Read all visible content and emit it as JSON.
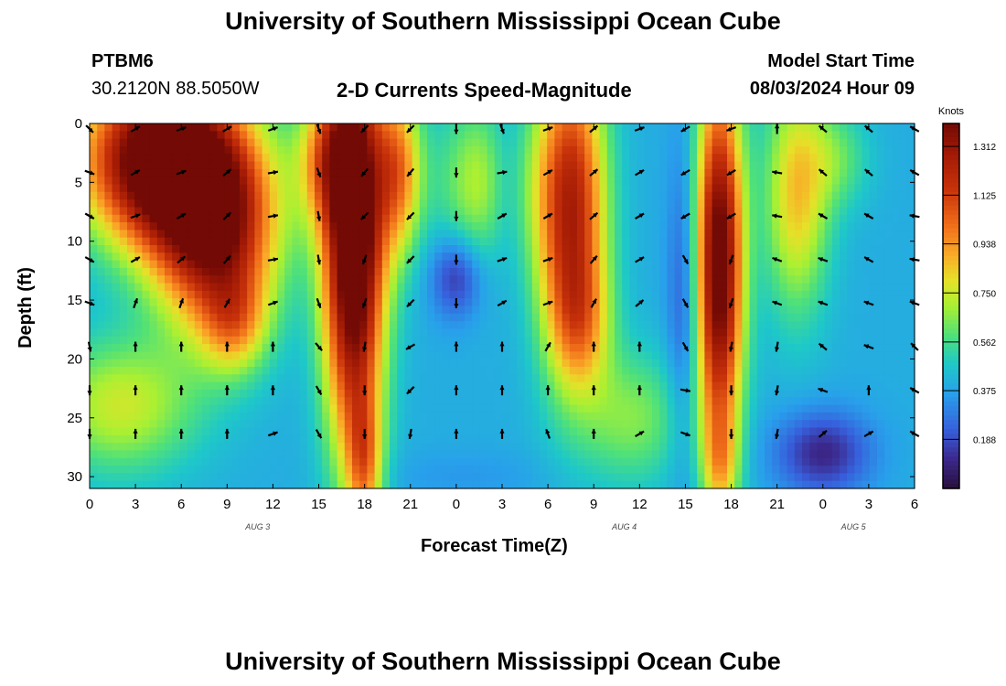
{
  "header": {
    "title_top": "University of Southern Mississippi Ocean Cube",
    "title_bottom": "University of Southern Mississippi Ocean Cube",
    "station_id": "PTBM6",
    "station_coords": "30.2120N  88.5050W",
    "plot_title": "2-D Currents Speed-Magnitude",
    "model_label": "Model Start Time",
    "model_time": "08/03/2024 Hour 09"
  },
  "chart_data": {
    "type": "heatmap",
    "title": "2-D Currents Speed-Magnitude",
    "xlabel": "Forecast Time(Z)",
    "ylabel": "Depth (ft)",
    "x_tick_labels": [
      "0",
      "3",
      "6",
      "9",
      "12",
      "15",
      "18",
      "21",
      "0",
      "3",
      "6",
      "9",
      "12",
      "15",
      "18",
      "21",
      "0",
      "3",
      "6"
    ],
    "x_range_hours": [
      0,
      54
    ],
    "y_range_ft": [
      0,
      31
    ],
    "y_ticks": [
      0,
      5,
      10,
      15,
      20,
      25,
      30
    ],
    "day_labels": [
      {
        "hour": 11,
        "label": "AUG 3"
      },
      {
        "hour": 35,
        "label": "AUG 4"
      },
      {
        "hour": 50,
        "label": "AUG 5"
      }
    ],
    "colorbar": {
      "unit": "Knots",
      "min": 0.0,
      "max": 1.4,
      "ticks": [
        "1.312",
        "1.125",
        "0.938",
        "0.750",
        "0.562",
        "0.375",
        "0.188"
      ],
      "tick_values": [
        1.312,
        1.125,
        0.938,
        0.75,
        0.562,
        0.375,
        0.188
      ]
    },
    "speed_blobs": [
      {
        "t": 4.5,
        "d": 3,
        "st": 3.5,
        "sd": 5,
        "a": 1.15
      },
      {
        "t": 8.2,
        "d": 9,
        "st": 2.8,
        "sd": 6,
        "a": 0.95
      },
      {
        "t": 9.5,
        "d": 17,
        "st": 1.5,
        "sd": 3,
        "a": 0.35
      },
      {
        "t": 2.0,
        "d": 24,
        "st": 3.5,
        "sd": 4,
        "a": 0.35
      },
      {
        "t": 15.5,
        "d": 3,
        "st": 1.4,
        "sd": 4,
        "a": 0.45
      },
      {
        "t": 17.3,
        "d": 10,
        "st": 1.4,
        "sd": 12,
        "a": 1.25
      },
      {
        "t": 18.0,
        "d": 29,
        "st": 0.8,
        "sd": 4,
        "a": 0.4
      },
      {
        "t": 20.2,
        "d": 4,
        "st": 1.1,
        "sd": 5,
        "a": 0.55
      },
      {
        "t": 26.0,
        "d": 5,
        "st": 2.2,
        "sd": 5,
        "a": 0.35
      },
      {
        "t": 31.5,
        "d": 7,
        "st": 1.6,
        "sd": 9,
        "a": 0.85
      },
      {
        "t": 32.2,
        "d": 17,
        "st": 1.4,
        "sd": 4,
        "a": 0.3
      },
      {
        "t": 35.5,
        "d": 25,
        "st": 2.5,
        "sd": 4,
        "a": 0.25
      },
      {
        "t": 41.2,
        "d": 12,
        "st": 1.1,
        "sd": 11,
        "a": 1.1
      },
      {
        "t": 41.3,
        "d": 29,
        "st": 0.8,
        "sd": 3,
        "a": 0.25
      },
      {
        "t": 46.3,
        "d": 6,
        "st": 1.5,
        "sd": 7,
        "a": 0.45
      },
      {
        "t": 49.0,
        "d": 3,
        "st": 1.5,
        "sd": 3,
        "a": 0.18
      }
    ],
    "slow_blobs": [
      {
        "t": 24.0,
        "d": 13,
        "st": 1.2,
        "sd": 2.5,
        "a": 0.28
      },
      {
        "t": 27.3,
        "d": 5,
        "st": 1.0,
        "sd": 5,
        "a": 0.2
      },
      {
        "t": 39.0,
        "d": 15,
        "st": 0.8,
        "sd": 10,
        "a": 0.22
      },
      {
        "t": 48.0,
        "d": 28,
        "st": 2.2,
        "sd": 2.5,
        "a": 0.3
      },
      {
        "t": 24.5,
        "d": 30,
        "st": 4.0,
        "sd": 1.5,
        "a": 0.05
      }
    ],
    "base_speed": 0.4,
    "vector_hours": [
      0,
      3,
      6,
      9,
      12,
      15,
      18,
      21,
      24,
      27,
      30,
      33,
      36,
      39,
      42,
      45,
      48,
      51,
      54
    ],
    "vector_depths_ft": [
      0,
      3.7,
      7.4,
      11.1,
      14.8,
      18.5,
      22.2,
      25.9
    ],
    "vector_directions_deg": [
      [
        135,
        110,
        120,
        120,
        110,
        170,
        180,
        180
      ],
      [
        60,
        60,
        70,
        60,
        20,
        0,
        0,
        0
      ],
      [
        70,
        70,
        60,
        50,
        20,
        0,
        0,
        0
      ],
      [
        60,
        50,
        45,
        40,
        30,
        0,
        0,
        0
      ],
      [
        70,
        80,
        80,
        80,
        70,
        0,
        0,
        70
      ],
      [
        160,
        160,
        170,
        170,
        160,
        140,
        150,
        150
      ],
      [
        225,
        220,
        225,
        200,
        200,
        190,
        180,
        180
      ],
      [
        225,
        220,
        225,
        225,
        225,
        240,
        225,
        190
      ],
      [
        180,
        180,
        180,
        180,
        180,
        0,
        0,
        0
      ],
      [
        160,
        80,
        60,
        70,
        60,
        0,
        0,
        0
      ],
      [
        70,
        60,
        60,
        70,
        70,
        30,
        0,
        340
      ],
      [
        50,
        50,
        50,
        40,
        30,
        0,
        0,
        0
      ],
      [
        70,
        60,
        60,
        60,
        50,
        0,
        0,
        60
      ],
      [
        240,
        240,
        240,
        150,
        150,
        150,
        100,
        110
      ],
      [
        250,
        240,
        240,
        200,
        200,
        190,
        180,
        180
      ],
      [
        0,
        280,
        280,
        290,
        290,
        190,
        190,
        190
      ],
      [
        310,
        310,
        300,
        290,
        290,
        310,
        290,
        50
      ],
      [
        310,
        310,
        300,
        300,
        290,
        290,
        0,
        60
      ],
      [
        300,
        300,
        280,
        280,
        290,
        315,
        300,
        300
      ]
    ]
  }
}
